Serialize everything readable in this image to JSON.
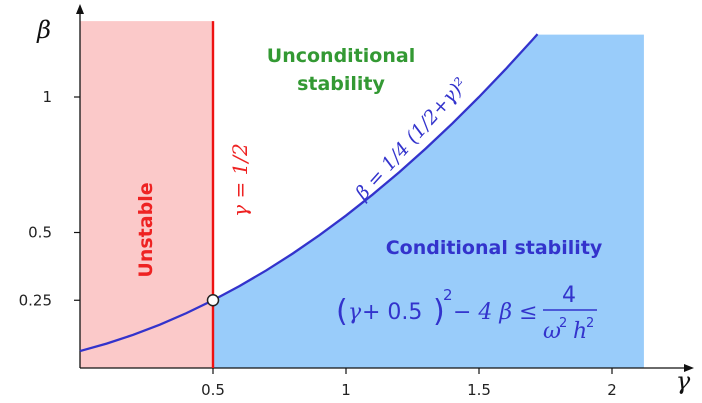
{
  "chart_data": {
    "type": "area",
    "x_ticks": [
      {
        "value": 0.5,
        "label": "0.5"
      },
      {
        "value": 1,
        "label": "1"
      },
      {
        "value": 1.5,
        "label": "1.5"
      },
      {
        "value": 2,
        "label": "2"
      }
    ],
    "y_ticks": [
      {
        "value": 0.25,
        "label": "0.25"
      },
      {
        "value": 0.5,
        "label": "0.5"
      },
      {
        "value": 1,
        "label": "1"
      }
    ],
    "xlim": [
      0,
      2.3
    ],
    "ylim": [
      0,
      1.28
    ],
    "curve": {
      "label": "β = 1/4 (1/2+γ)²",
      "x": [
        0.0,
        0.1,
        0.2,
        0.3,
        0.4,
        0.5,
        0.6,
        0.7,
        0.8,
        0.9,
        1.0,
        1.1,
        1.2,
        1.3,
        1.4,
        1.5,
        1.6,
        1.7,
        1.72
      ],
      "y": [
        0.0625,
        0.09,
        0.1225,
        0.16,
        0.2025,
        0.25,
        0.3025,
        0.36,
        0.4225,
        0.49,
        0.5625,
        0.64,
        0.7225,
        0.81,
        0.9025,
        1.0,
        1.1025,
        1.21,
        1.2321
      ]
    },
    "vertical_line": {
      "x": 0.5,
      "label": "γ = 1/2"
    },
    "marked_point": {
      "x": 0.5,
      "y": 0.25
    },
    "regions": {
      "unstable": {
        "x_range": [
          0,
          0.5
        ],
        "y_top": 1.28,
        "label": "Unstable"
      },
      "conditional": {
        "x_range": [
          0.5,
          2.12
        ],
        "y_top": 1.23,
        "label": "Conditional stability"
      },
      "unconditional": {
        "label": "Unconditional stability"
      }
    },
    "colors": {
      "unstable_fill": "#fbc9c9",
      "conditional_fill": "#99ccfa",
      "curve": "#3333cc",
      "vertical_line": "#ee1111",
      "unstable_text": "#ee2222",
      "conditional_text": "#3333cc",
      "unconditional_text": "#339933",
      "axis": "#111111"
    }
  },
  "labels": {
    "x_axis": "γ",
    "y_axis": "β",
    "unstable": "Unstable",
    "unconditional_line1": "Unconditional",
    "unconditional_line2": "stability",
    "conditional": "Conditional stability",
    "vline": "γ = 1/2",
    "curve_label": "β = 1/4 (1/2+γ)²",
    "formula_lhs_open": "(",
    "formula_gamma": "γ",
    "formula_plus": " + 0.5",
    "formula_close": ")",
    "formula_sq": "2",
    "formula_rest": " − 4 β ≤",
    "formula_num": "4",
    "formula_den_omega": "ω",
    "formula_den_sq1": "2",
    "formula_den_h": "h",
    "formula_den_sq2": "2"
  }
}
